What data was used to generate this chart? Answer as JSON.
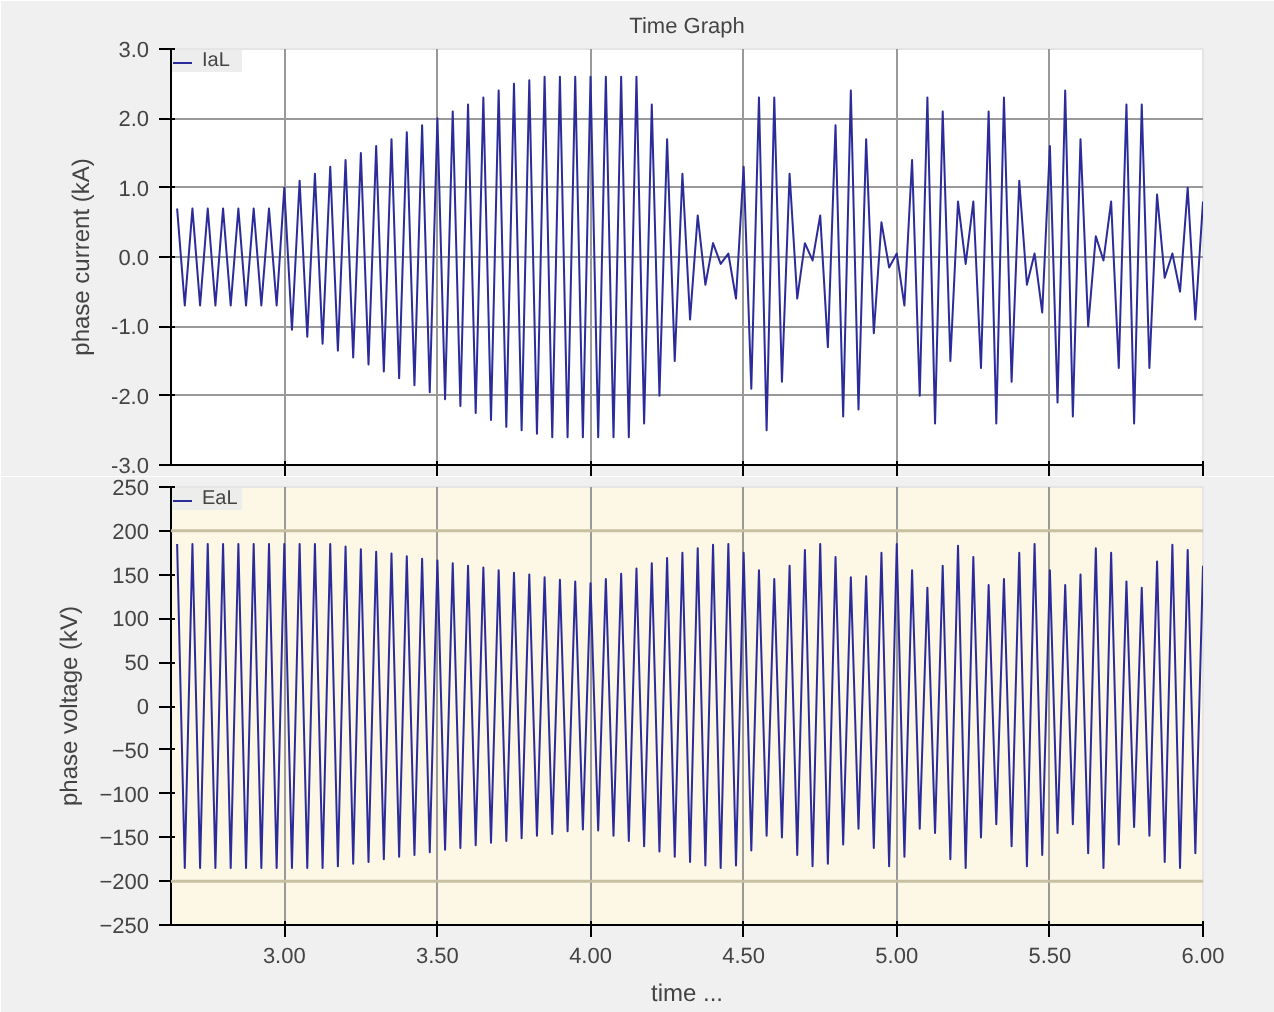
{
  "chart_data": [
    {
      "type": "line",
      "title": "Time Graph",
      "ylabel": "phase current (kA)",
      "legend": "top left",
      "grid": true,
      "tick_labels": "y",
      "marker": "none",
      "line_style": "solid",
      "x": [
        2.65,
        2.675,
        2.7,
        2.725,
        2.75,
        2.775,
        2.8,
        2.825,
        2.85,
        2.875,
        2.9,
        2.925,
        2.95,
        2.975,
        3.0,
        3.025,
        3.05,
        3.075,
        3.1,
        3.125,
        3.15,
        3.175,
        3.2,
        3.225,
        3.25,
        3.275,
        3.3,
        3.325,
        3.35,
        3.375,
        3.4,
        3.425,
        3.45,
        3.475,
        3.5,
        3.525,
        3.55,
        3.575,
        3.6,
        3.625,
        3.65,
        3.675,
        3.7,
        3.725,
        3.75,
        3.775,
        3.8,
        3.825,
        3.85,
        3.875,
        3.9,
        3.925,
        3.95,
        3.975,
        4.0,
        4.025,
        4.05,
        4.075,
        4.1,
        4.125,
        4.15,
        4.175,
        4.2,
        4.225,
        4.25,
        4.275,
        4.3,
        4.325,
        4.35,
        4.375,
        4.4,
        4.425,
        4.45,
        4.475,
        4.5,
        4.525,
        4.55,
        4.575,
        4.6,
        4.625,
        4.65,
        4.675,
        4.7,
        4.725,
        4.75,
        4.775,
        4.8,
        4.825,
        4.85,
        4.875,
        4.9,
        4.925,
        4.95,
        4.975,
        5.0,
        5.025,
        5.05,
        5.075,
        5.1,
        5.125,
        5.15,
        5.175,
        5.2,
        5.225,
        5.25,
        5.275,
        5.3,
        5.325,
        5.35,
        5.375,
        5.4,
        5.425,
        5.45,
        5.475,
        5.5,
        5.525,
        5.55,
        5.575,
        5.6,
        5.625,
        5.65,
        5.675,
        5.7,
        5.725,
        5.75,
        5.775,
        5.8,
        5.825,
        5.85,
        5.875,
        5.9,
        5.925,
        5.95,
        5.975,
        6.0
      ],
      "xlim": [
        2.63,
        6.0
      ],
      "xticks": [
        {
          "value": 3.0,
          "label": null
        },
        {
          "value": 3.5,
          "label": null
        },
        {
          "value": 4.0,
          "label": null
        },
        {
          "value": 4.5,
          "label": null
        },
        {
          "value": 5.0,
          "label": null
        },
        {
          "value": 5.5,
          "label": null
        },
        {
          "value": 6.0,
          "label": null
        }
      ],
      "ylim": [
        -3.0,
        3.0
      ],
      "yticks": [
        {
          "value": -3,
          "label": "-3.0"
        },
        {
          "value": -2,
          "label": "-2.0"
        },
        {
          "value": -1,
          "label": "-1.0"
        },
        {
          "value": 0,
          "label": "0.0"
        },
        {
          "value": 1,
          "label": "1.0"
        },
        {
          "value": 2,
          "label": "2.0"
        },
        {
          "value": 3,
          "label": "3.0"
        }
      ],
      "series": [
        {
          "name": "IaL",
          "color": "#2b2b9a",
          "values": [
            0.7,
            -0.7,
            0.7,
            -0.7,
            0.7,
            -0.7,
            0.7,
            -0.7,
            0.7,
            -0.7,
            0.7,
            -0.7,
            0.7,
            -0.7,
            1.0,
            -1.05,
            1.1,
            -1.15,
            1.2,
            -1.25,
            1.3,
            -1.35,
            1.4,
            -1.45,
            1.5,
            -1.55,
            1.6,
            -1.65,
            1.7,
            -1.75,
            1.8,
            -1.85,
            1.9,
            -1.95,
            2.0,
            -2.05,
            2.1,
            -2.15,
            2.2,
            -2.25,
            2.3,
            -2.35,
            2.4,
            -2.45,
            2.5,
            -2.5,
            2.55,
            -2.55,
            2.6,
            -2.6,
            2.6,
            -2.6,
            2.6,
            -2.6,
            2.6,
            -2.6,
            2.6,
            -2.6,
            2.6,
            -2.6,
            2.6,
            -2.4,
            2.2,
            -2.0,
            1.7,
            -1.5,
            1.2,
            -0.9,
            0.6,
            -0.4,
            0.2,
            -0.1,
            0.05,
            -0.6,
            1.3,
            -1.9,
            2.3,
            -2.5,
            2.3,
            -1.8,
            1.2,
            -0.6,
            0.2,
            -0.05,
            0.6,
            -1.3,
            1.9,
            -2.3,
            2.4,
            -2.2,
            1.7,
            -1.1,
            0.5,
            -0.15,
            0.05,
            -0.7,
            1.4,
            -2.0,
            2.3,
            -2.4,
            2.1,
            -1.5,
            0.8,
            -0.1,
            0.8,
            -1.6,
            2.1,
            -2.4,
            2.3,
            -1.8,
            1.1,
            -0.4,
            0.05,
            -0.8,
            1.6,
            -2.1,
            2.4,
            -2.3,
            1.7,
            -1.0,
            0.3,
            -0.05,
            0.8,
            -1.6,
            2.2,
            -2.4,
            2.2,
            -1.6,
            0.9,
            -0.3,
            0.05,
            -0.5,
            1.0,
            -0.9,
            0.8
          ]
        }
      ]
    },
    {
      "type": "line",
      "xlabel": "time ...",
      "ylabel": "phase voltage (kV)",
      "legend": "top left",
      "grid": "x",
      "marker": "none",
      "line_style": "solid",
      "x": [
        2.65,
        2.675,
        2.7,
        2.725,
        2.75,
        2.775,
        2.8,
        2.825,
        2.85,
        2.875,
        2.9,
        2.925,
        2.95,
        2.975,
        3.0,
        3.025,
        3.05,
        3.075,
        3.1,
        3.125,
        3.15,
        3.175,
        3.2,
        3.225,
        3.25,
        3.275,
        3.3,
        3.325,
        3.35,
        3.375,
        3.4,
        3.425,
        3.45,
        3.475,
        3.5,
        3.525,
        3.55,
        3.575,
        3.6,
        3.625,
        3.65,
        3.675,
        3.7,
        3.725,
        3.75,
        3.775,
        3.8,
        3.825,
        3.85,
        3.875,
        3.9,
        3.925,
        3.95,
        3.975,
        4.0,
        4.025,
        4.05,
        4.075,
        4.1,
        4.125,
        4.15,
        4.175,
        4.2,
        4.225,
        4.25,
        4.275,
        4.3,
        4.325,
        4.35,
        4.375,
        4.4,
        4.425,
        4.45,
        4.475,
        4.5,
        4.525,
        4.55,
        4.575,
        4.6,
        4.625,
        4.65,
        4.675,
        4.7,
        4.725,
        4.75,
        4.775,
        4.8,
        4.825,
        4.85,
        4.875,
        4.9,
        4.925,
        4.95,
        4.975,
        5.0,
        5.025,
        5.05,
        5.075,
        5.1,
        5.125,
        5.15,
        5.175,
        5.2,
        5.225,
        5.25,
        5.275,
        5.3,
        5.325,
        5.35,
        5.375,
        5.4,
        5.425,
        5.45,
        5.475,
        5.5,
        5.525,
        5.55,
        5.575,
        5.6,
        5.625,
        5.65,
        5.675,
        5.7,
        5.725,
        5.75,
        5.775,
        5.8,
        5.825,
        5.85,
        5.875,
        5.9,
        5.925,
        5.95,
        5.975,
        6.0
      ],
      "xlim": [
        2.63,
        6.0
      ],
      "xticks": [
        {
          "value": 3.0,
          "label": "3.00"
        },
        {
          "value": 3.5,
          "label": "3.50"
        },
        {
          "value": 4.0,
          "label": "4.00"
        },
        {
          "value": 4.5,
          "label": "4.50"
        },
        {
          "value": 5.0,
          "label": "5.00"
        },
        {
          "value": 5.5,
          "label": "5.50"
        },
        {
          "value": 6.0,
          "label": "6.00"
        }
      ],
      "ylim": [
        -250,
        250
      ],
      "yticks": [
        -250,
        -200,
        -150,
        -100,
        -50,
        0,
        50,
        100,
        150,
        200,
        250
      ],
      "ref_lines": [
        {
          "axis": "y",
          "value": 200,
          "color": "#c8c0a0"
        },
        {
          "axis": "y",
          "value": -200,
          "color": "#c8c0a0"
        }
      ],
      "series": [
        {
          "name": "EaL",
          "color": "#2b2b9a",
          "values": [
            185,
            -185,
            185,
            -185,
            185,
            -185,
            185,
            -185,
            185,
            -185,
            185,
            -185,
            185,
            -185,
            185,
            -185,
            185,
            -185,
            185,
            -185,
            185,
            -183,
            182,
            -180,
            179,
            -178,
            176,
            -175,
            174,
            -172,
            171,
            -170,
            168,
            -167,
            166,
            -164,
            163,
            -162,
            160,
            -159,
            158,
            -156,
            155,
            -154,
            152,
            -151,
            150,
            -148,
            147,
            -146,
            144,
            -143,
            142,
            -141,
            140,
            -142,
            145,
            -148,
            151,
            -154,
            157,
            -160,
            163,
            -166,
            169,
            -172,
            175,
            -178,
            180,
            -182,
            184,
            -185,
            185,
            -182,
            175,
            -165,
            155,
            -148,
            145,
            -150,
            160,
            -170,
            178,
            -183,
            185,
            -180,
            170,
            -158,
            147,
            -140,
            148,
            -162,
            175,
            -183,
            185,
            -172,
            155,
            -140,
            135,
            -145,
            160,
            -175,
            183,
            -185,
            170,
            -150,
            138,
            -135,
            145,
            -160,
            175,
            -183,
            185,
            -170,
            155,
            -145,
            138,
            -135,
            150,
            -168,
            180,
            -185,
            175,
            -158,
            142,
            -138,
            135,
            -148,
            165,
            -178,
            184,
            -185,
            178,
            -168,
            160
          ]
        }
      ]
    }
  ]
}
